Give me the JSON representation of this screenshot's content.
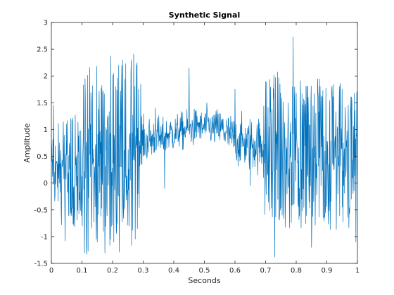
{
  "chart_data": {
    "type": "line",
    "title": "Synthetic Signal",
    "xlabel": "Seconds",
    "ylabel": "Amplitude",
    "xlim": [
      0,
      1
    ],
    "ylim": [
      -1.5,
      3
    ],
    "xticks": [
      "0",
      "0.1",
      "0.2",
      "0.3",
      "0.4",
      "0.5",
      "0.6",
      "0.7",
      "0.8",
      "0.9",
      "1"
    ],
    "yticks": [
      "-1.5",
      "-1",
      "-0.5",
      "0",
      "0.5",
      "1",
      "1.5",
      "2",
      "2.5",
      "3"
    ],
    "grid": false,
    "legend": "none",
    "series": [
      {
        "color": "#0072bd",
        "samples": 1000,
        "x": [
          0,
          0.01,
          0.02,
          0.03,
          0.04,
          0.05,
          0.06,
          0.07,
          0.08,
          0.09,
          0.1,
          0.11,
          0.12,
          0.13,
          0.14,
          0.15,
          0.16,
          0.17,
          0.18,
          0.19,
          0.2,
          0.21,
          0.22,
          0.23,
          0.24,
          0.25,
          0.26,
          0.27,
          0.28,
          0.29,
          0.3,
          0.31,
          0.32,
          0.33,
          0.34,
          0.35,
          0.36,
          0.37,
          0.38,
          0.39,
          0.4,
          0.41,
          0.42,
          0.43,
          0.44,
          0.45,
          0.46,
          0.47,
          0.48,
          0.49,
          0.5,
          0.51,
          0.52,
          0.53,
          0.54,
          0.55,
          0.56,
          0.57,
          0.58,
          0.59,
          0.6,
          0.61,
          0.62,
          0.63,
          0.64,
          0.65,
          0.66,
          0.67,
          0.68,
          0.69,
          0.7,
          0.71,
          0.72,
          0.73,
          0.74,
          0.75,
          0.76,
          0.77,
          0.78,
          0.79,
          0.8,
          0.81,
          0.82,
          0.83,
          0.84,
          0.85,
          0.86,
          0.87,
          0.88,
          0.89,
          0.9,
          0.91,
          0.92,
          0.93,
          0.94,
          0.95,
          0.96,
          0.97,
          0.98,
          0.99,
          1
        ],
        "y_envelope": [
          0.35,
          0.4,
          0.2,
          0.3,
          0.25,
          0.3,
          0.35,
          0.25,
          0.3,
          0.35,
          0.3,
          0.4,
          0.45,
          0.5,
          0.45,
          0.55,
          0.5,
          0.45,
          0.5,
          0.55,
          0.5,
          0.45,
          0.5,
          0.55,
          0.45,
          0.5,
          0.55,
          0.5,
          0.55,
          0.6,
          0.8,
          0.75,
          0.85,
          0.8,
          0.9,
          0.85,
          0.8,
          0.85,
          0.9,
          0.95,
          0.9,
          0.95,
          1.0,
          0.95,
          1.0,
          1.05,
          1.0,
          1.05,
          1.1,
          1.0,
          1.05,
          1.1,
          1.05,
          1.0,
          1.05,
          1.0,
          1.0,
          0.95,
          0.9,
          0.85,
          0.8,
          0.75,
          0.8,
          0.75,
          0.7,
          0.75,
          0.7,
          0.75,
          0.7,
          0.7,
          0.6,
          0.55,
          0.6,
          0.65,
          0.7,
          0.6,
          0.55,
          0.6,
          0.65,
          0.7,
          0.6,
          0.55,
          0.6,
          0.55,
          0.6,
          0.55,
          0.5,
          0.6,
          0.55,
          0.5,
          0.45,
          0.5,
          0.45,
          0.5,
          0.55,
          0.5,
          0.45,
          0.5,
          0.45,
          0.4,
          0.45
        ],
        "y_spread": [
          0.8,
          0.8,
          0.7,
          0.7,
          0.8,
          0.8,
          0.8,
          0.8,
          0.8,
          0.8,
          0.8,
          1.4,
          1.3,
          1.3,
          1.3,
          1.3,
          1.3,
          1.3,
          1.3,
          1.4,
          1.4,
          1.4,
          1.3,
          1.3,
          1.3,
          1.3,
          1.3,
          1.3,
          1.3,
          1.0,
          0.35,
          0.35,
          0.35,
          0.35,
          0.35,
          0.35,
          0.35,
          0.3,
          0.3,
          0.3,
          0.3,
          0.3,
          0.3,
          0.3,
          0.3,
          0.3,
          0.3,
          0.3,
          0.3,
          0.3,
          0.3,
          0.3,
          0.3,
          0.3,
          0.3,
          0.35,
          0.35,
          0.35,
          0.35,
          0.4,
          0.4,
          0.4,
          0.4,
          0.4,
          0.45,
          0.45,
          0.45,
          0.45,
          0.45,
          0.5,
          1.1,
          1.1,
          1.0,
          1.0,
          1.1,
          1.1,
          1.1,
          1.0,
          1.1,
          1.1,
          1.0,
          1.0,
          1.0,
          1.0,
          1.0,
          1.0,
          1.0,
          1.0,
          1.0,
          1.0,
          1.0,
          1.0,
          1.0,
          1.0,
          1.0,
          1.0,
          1.0,
          1.0,
          1.0,
          1.0,
          0.9
        ],
        "peaks": [
          {
            "x": 0.11,
            "y": 1.95
          },
          {
            "x": 0.115,
            "y": -1.33
          },
          {
            "x": 0.22,
            "y": 2.2
          },
          {
            "x": 0.28,
            "y": 2.25
          },
          {
            "x": 0.79,
            "y": 2.73
          },
          {
            "x": 0.73,
            "y": -1.38
          },
          {
            "x": 0.045,
            "y": -1.08
          },
          {
            "x": 0.34,
            "y": 1.4
          },
          {
            "x": 0.37,
            "y": -0.1
          },
          {
            "x": 0.45,
            "y": 2.15
          },
          {
            "x": 0.6,
            "y": 1.75
          },
          {
            "x": 0.65,
            "y": -0.05
          },
          {
            "x": 0.85,
            "y": -1.2
          },
          {
            "x": 0.99,
            "y": 1.68
          },
          {
            "x": 0.995,
            "y": -1.1
          }
        ]
      }
    ]
  }
}
